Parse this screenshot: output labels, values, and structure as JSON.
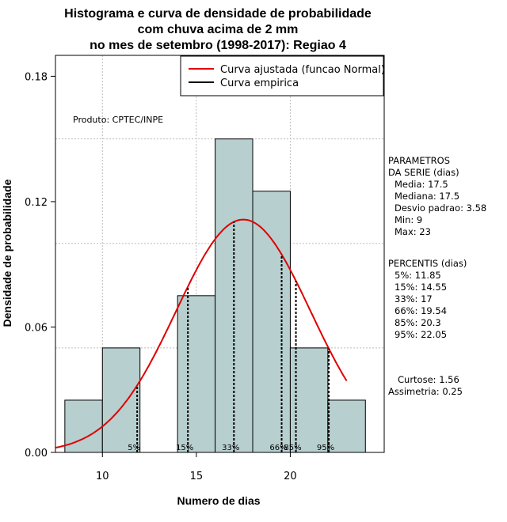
{
  "chart_data": {
    "type": "bar",
    "title_lines": [
      "Histograma e curva de densidade de probabilidade",
      "com chuva acima de 2 mm",
      "no mes de setembro (1998-2017): Regiao 4"
    ],
    "xlabel": "Numero de dias",
    "ylabel": "Densidade de probabilidade",
    "xlim": [
      7.5,
      25
    ],
    "ylim": [
      0,
      0.19
    ],
    "x_ticks": [
      10,
      15,
      20
    ],
    "x_tick_labels": [
      "10",
      "15",
      "20"
    ],
    "y_ticks": [
      0.0,
      0.06,
      0.12,
      0.18
    ],
    "y_tick_labels": [
      "0.00",
      "0.06",
      "0.12",
      "0.18"
    ],
    "grid": true,
    "grid_x": [
      10,
      15,
      20
    ],
    "grid_y": [
      0.05,
      0.1,
      0.15
    ],
    "bins": [
      {
        "start": 8,
        "end": 10,
        "density": 0.025
      },
      {
        "start": 10,
        "end": 12,
        "density": 0.05
      },
      {
        "start": 12,
        "end": 14,
        "density": 0.0
      },
      {
        "start": 14,
        "end": 16,
        "density": 0.075
      },
      {
        "start": 16,
        "end": 18,
        "density": 0.15
      },
      {
        "start": 18,
        "end": 20,
        "density": 0.125
      },
      {
        "start": 20,
        "end": 22,
        "density": 0.05
      },
      {
        "start": 22,
        "end": 24,
        "density": 0.025
      }
    ],
    "bar_color": "#b7cfcf",
    "fitted_curve": {
      "mean": 17.5,
      "sd": 3.58,
      "x_range": [
        7.5,
        23
      ],
      "color": "#e00000"
    },
    "percentiles": [
      {
        "label": "5%",
        "x": 11.85
      },
      {
        "label": "15%",
        "x": 14.55
      },
      {
        "label": "33%",
        "x": 17
      },
      {
        "label": "66%",
        "x": 19.54
      },
      {
        "label": "85%",
        "x": 20.3
      },
      {
        "label": "95%",
        "x": 22.05
      }
    ],
    "legend": {
      "position": "top-right",
      "entries": [
        {
          "label": "Curva ajustada (funcao Normal)",
          "color": "#e00000"
        },
        {
          "label": "Curva empirica",
          "color": "#000000"
        }
      ]
    },
    "annotation": "Produto: CPTEC/INPE",
    "side_panel": {
      "parametros": [
        "PARAMETROS",
        "DA SERIE (dias)",
        "Media: 17.5",
        "Mediana: 17.5",
        "Desvio padrao: 3.58",
        "Min: 9",
        "Max: 23"
      ],
      "percentis": [
        "PERCENTIS (dias)",
        "5%: 11.85",
        "15%: 14.55",
        "33%: 17",
        "66%: 19.54",
        "85%: 20.3",
        "95%: 22.05"
      ],
      "shape": [
        "Curtose: 1.56",
        "Assimetria: 0.25"
      ]
    }
  }
}
